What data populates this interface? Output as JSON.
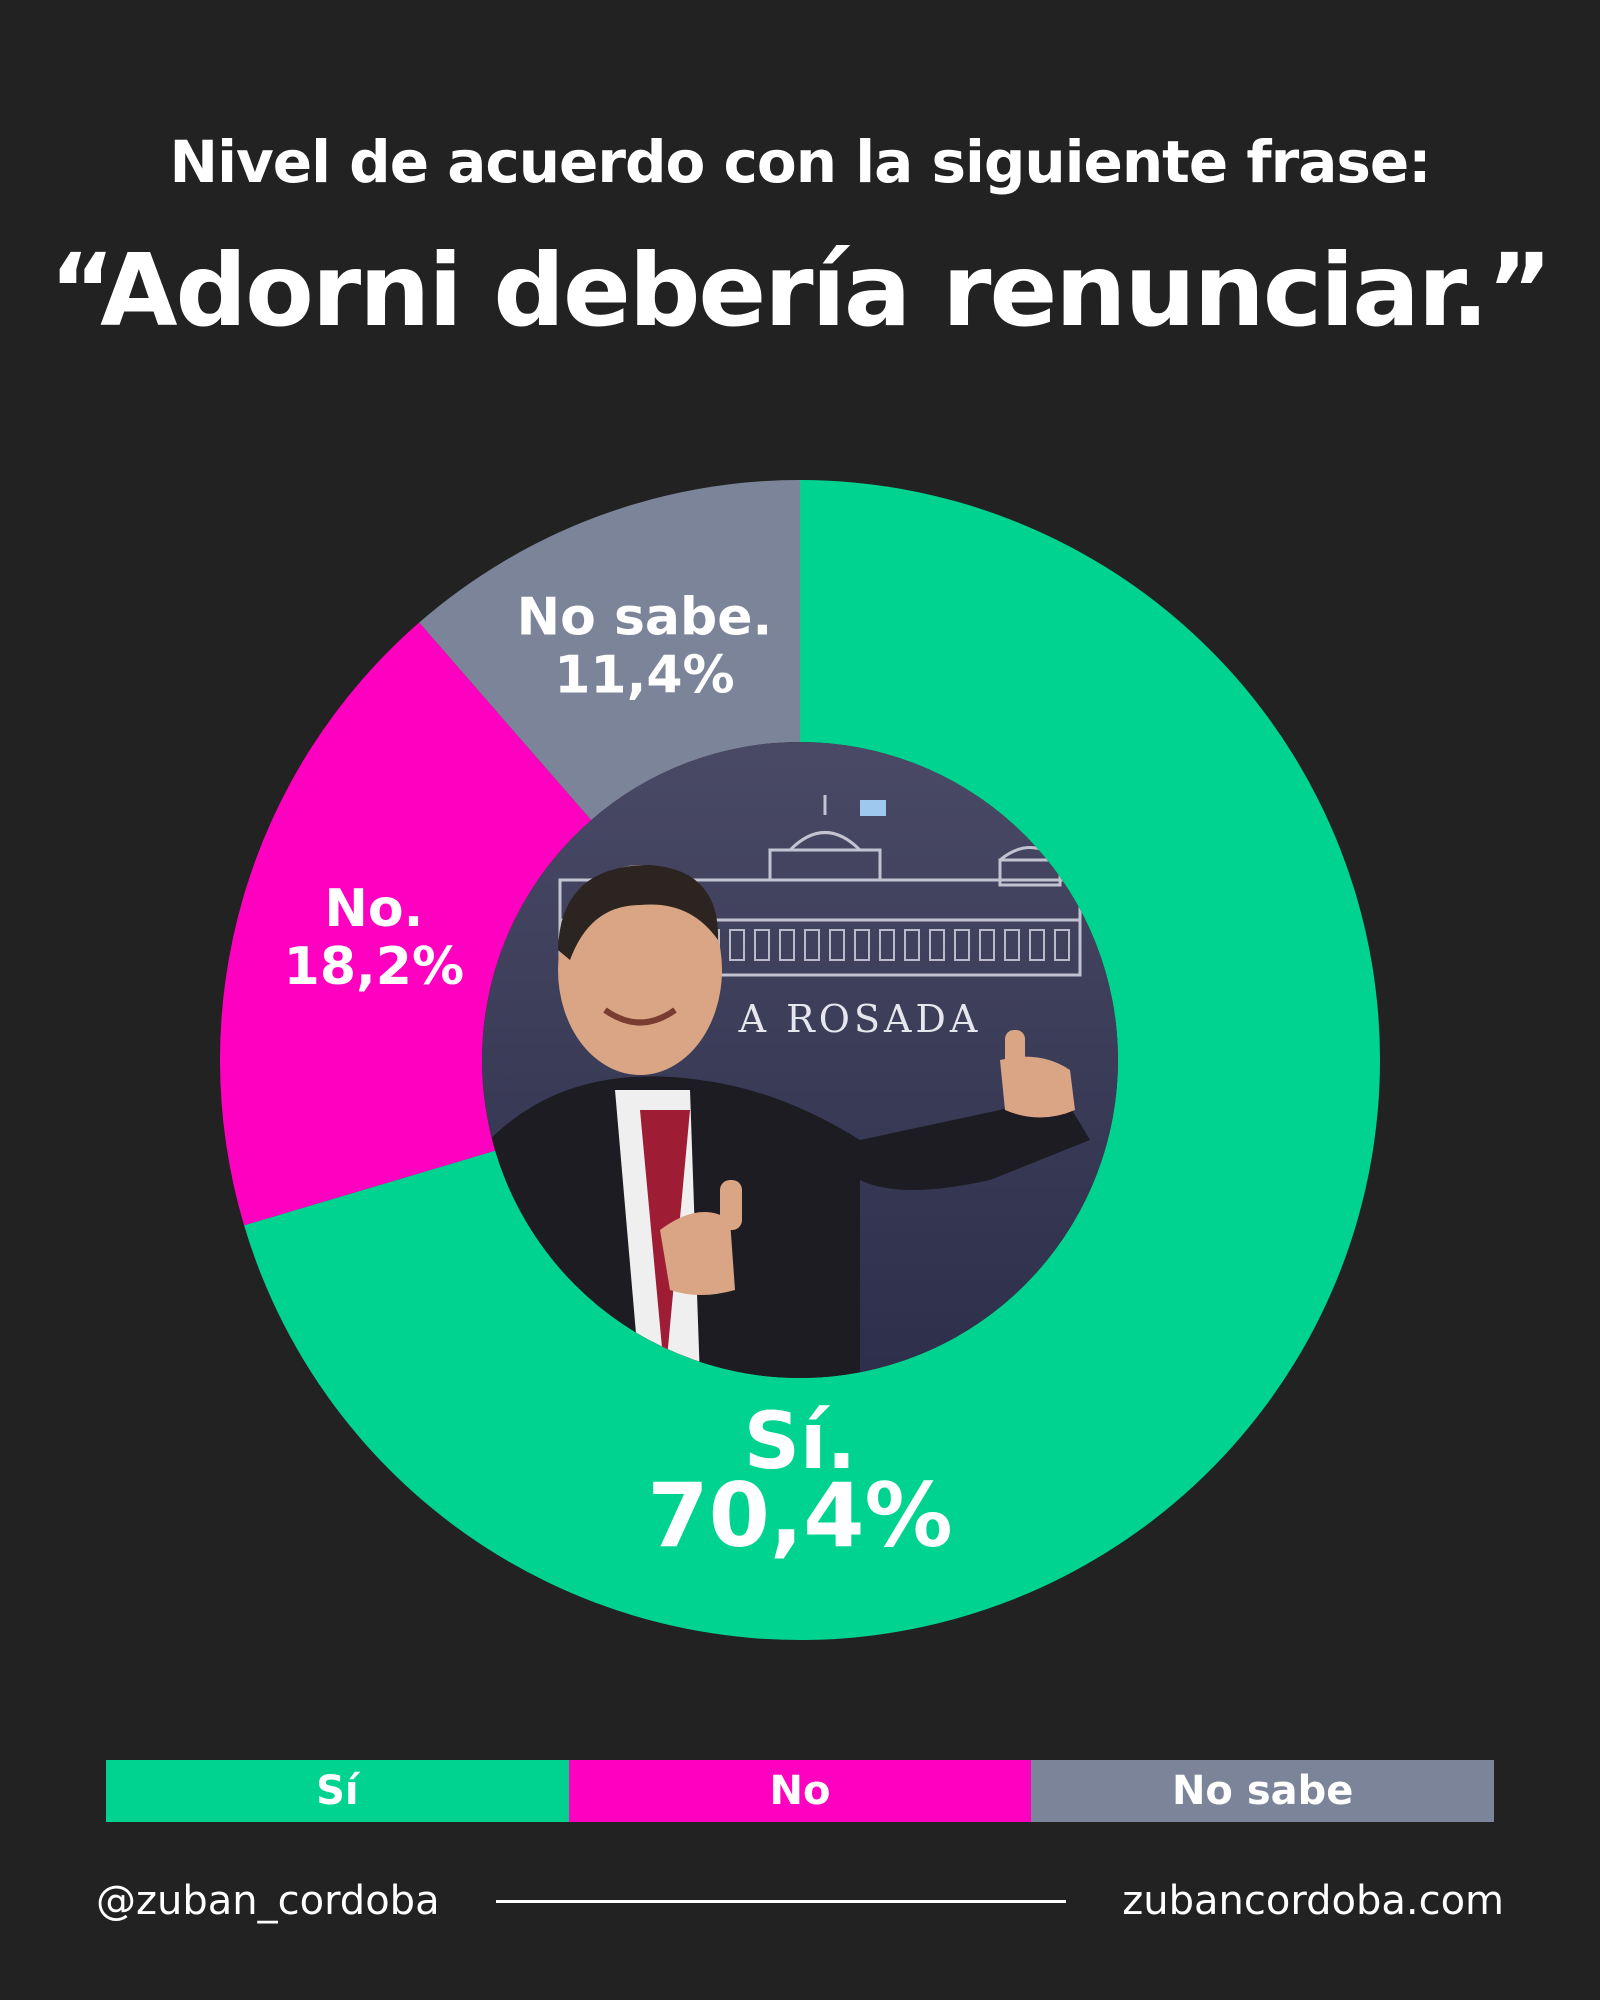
{
  "header": {
    "line1": "Nivel de acuerdo con la siguiente frase:",
    "line2": "“Adorni debería renunciar.”"
  },
  "chart_data": {
    "type": "pie",
    "style": "donut",
    "categories": [
      "Sí",
      "No",
      "No sabe"
    ],
    "values": [
      70.4,
      18.2,
      11.4
    ],
    "slice_labels": [
      {
        "name": "Sí.",
        "value": "70,4%"
      },
      {
        "name": "No.",
        "value": "18,2%"
      },
      {
        "name": "No sabe.",
        "value": "11,4%"
      }
    ],
    "colors": [
      "#00D390",
      "#FF00C0",
      "#7C8499"
    ],
    "legend": [
      "Sí",
      "No",
      "No sabe"
    ],
    "legend_position": "bottom"
  },
  "center_image": {
    "sign_text": "A ROSADA"
  },
  "footer": {
    "handle": "@zuban_cordoba",
    "website": "zubancordoba.com"
  }
}
